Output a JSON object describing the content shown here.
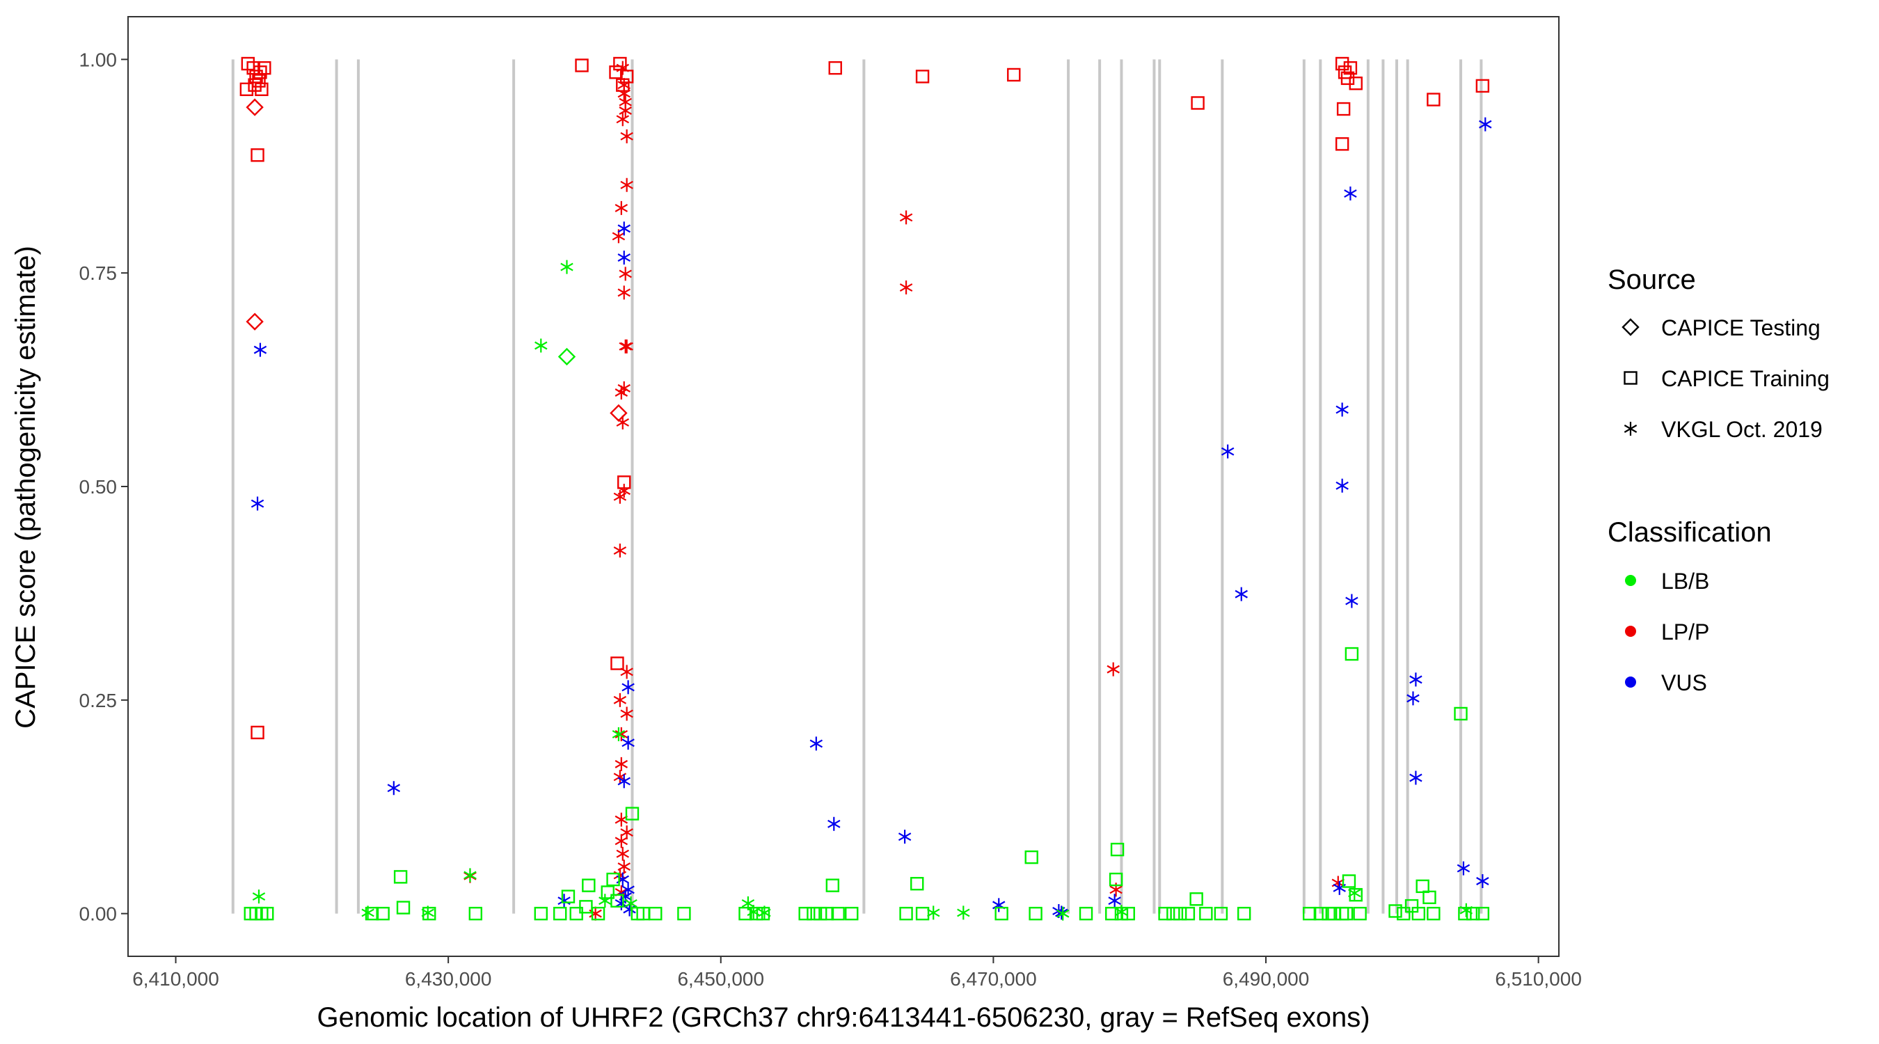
{
  "chart_data": {
    "type": "scatter",
    "title": "",
    "xlabel": "Genomic location of UHRF2 (GRCh37 chr9:6413441-6506230, gray = RefSeq exons)",
    "ylabel": "CAPICE score (pathogenicity estimate)",
    "xlim": [
      6406500,
      6511500
    ],
    "ylim": [
      -0.05,
      1.05
    ],
    "x_ticks": [
      6410000,
      6430000,
      6450000,
      6470000,
      6490000,
      6510000
    ],
    "x_tick_labels": [
      "6,410,000",
      "6,430,000",
      "6,450,000",
      "6,470,000",
      "6,490,000",
      "6,510,000"
    ],
    "y_ticks": [
      0,
      0.25,
      0.5,
      0.75,
      1.0
    ],
    "y_tick_labels": [
      "0.00",
      "0.25",
      "0.50",
      "0.75",
      "1.00"
    ],
    "exons": [
      6414200,
      6421800,
      6423400,
      6434800,
      6443500,
      6460500,
      6475500,
      6477800,
      6479400,
      6481800,
      6482200,
      6486800,
      6492800,
      6494000,
      6497500,
      6498600,
      6499600,
      6500400,
      6504300,
      6505800
    ],
    "legend": {
      "source_title": "Source",
      "sources": [
        {
          "key": "testing",
          "label": "CAPICE Testing",
          "shape": "diamond"
        },
        {
          "key": "training",
          "label": "CAPICE Training",
          "shape": "square"
        },
        {
          "key": "vkgl",
          "label": "VKGL Oct. 2019",
          "shape": "asterisk"
        }
      ],
      "class_title": "Classification",
      "classes": [
        {
          "key": "LB/B",
          "label": "LB/B",
          "color": "#00ee00"
        },
        {
          "key": "LP/P",
          "label": "LP/P",
          "color": "#ee0000"
        },
        {
          "key": "VUS",
          "label": "VUS",
          "color": "#0000ee"
        }
      ]
    },
    "series": [
      {
        "name": "CAPICE Training / LP/P",
        "source": "training",
        "class": "LP/P",
        "points": [
          [
            6415300,
            0.995
          ],
          [
            6415700,
            0.99
          ],
          [
            6416200,
            0.985
          ],
          [
            6416500,
            0.99
          ],
          [
            6416100,
            0.975
          ],
          [
            6415800,
            0.97
          ],
          [
            6416300,
            0.965
          ],
          [
            6415200,
            0.965
          ],
          [
            6415900,
            0.98
          ],
          [
            6416000,
            0.888
          ],
          [
            6416000,
            0.212
          ],
          [
            6439800,
            0.993
          ],
          [
            6458400,
            0.99
          ],
          [
            6464800,
            0.98
          ],
          [
            6471500,
            0.982
          ],
          [
            6485000,
            0.949
          ],
          [
            6495600,
            0.995
          ],
          [
            6495800,
            0.985
          ],
          [
            6496200,
            0.99
          ],
          [
            6496000,
            0.978
          ],
          [
            6496600,
            0.972
          ],
          [
            6495700,
            0.942
          ],
          [
            6495600,
            0.901
          ],
          [
            6502300,
            0.953
          ],
          [
            6505900,
            0.969
          ],
          [
            6442300,
            0.985
          ],
          [
            6442600,
            0.995
          ],
          [
            6442800,
            0.97
          ],
          [
            6443100,
            0.98
          ],
          [
            6442400,
            0.293
          ],
          [
            6442900,
            0.505
          ]
        ]
      },
      {
        "name": "CAPICE Testing / LP/P",
        "source": "testing",
        "class": "LP/P",
        "points": [
          [
            6415800,
            0.944
          ],
          [
            6415800,
            0.693
          ],
          [
            6442500,
            0.586
          ]
        ]
      },
      {
        "name": "CAPICE Testing / LB/B",
        "source": "testing",
        "class": "LB/B",
        "points": [
          [
            6438700,
            0.652
          ]
        ]
      },
      {
        "name": "VKGL Oct. 2019 / LP/P",
        "source": "vkgl",
        "class": "LP/P",
        "points": [
          [
            6442800,
            0.99
          ],
          [
            6442900,
            0.97
          ],
          [
            6443000,
            0.95
          ],
          [
            6442800,
            0.93
          ],
          [
            6443100,
            0.91
          ],
          [
            6442900,
            0.96
          ],
          [
            6443000,
            0.94
          ],
          [
            6443100,
            0.853
          ],
          [
            6442700,
            0.826
          ],
          [
            6442500,
            0.793
          ],
          [
            6443000,
            0.749
          ],
          [
            6442900,
            0.727
          ],
          [
            6443000,
            0.664
          ],
          [
            6443100,
            0.664
          ],
          [
            6442900,
            0.615
          ],
          [
            6442700,
            0.61
          ],
          [
            6442800,
            0.575
          ],
          [
            6442900,
            0.495
          ],
          [
            6442600,
            0.488
          ],
          [
            6442600,
            0.425
          ],
          [
            6443100,
            0.283
          ],
          [
            6442600,
            0.25
          ],
          [
            6443100,
            0.234
          ],
          [
            6442700,
            0.21
          ],
          [
            6442700,
            0.175
          ],
          [
            6442600,
            0.16
          ],
          [
            6442700,
            0.11
          ],
          [
            6443100,
            0.095
          ],
          [
            6442700,
            0.085
          ],
          [
            6442800,
            0.07
          ],
          [
            6442900,
            0.055
          ],
          [
            6442600,
            0.045
          ],
          [
            6442700,
            0.025
          ],
          [
            6431600,
            0.044
          ],
          [
            6463600,
            0.815
          ],
          [
            6463600,
            0.733
          ],
          [
            6478800,
            0.286
          ],
          [
            6479000,
            0.028
          ],
          [
            6495300,
            0.036
          ],
          [
            6440800,
            0.0
          ]
        ]
      },
      {
        "name": "VKGL Oct. 2019 / VUS",
        "source": "vkgl",
        "class": "VUS",
        "points": [
          [
            6416200,
            0.66
          ],
          [
            6416000,
            0.48
          ],
          [
            6426000,
            0.147
          ],
          [
            6438500,
            0.015
          ],
          [
            6442900,
            0.802
          ],
          [
            6442900,
            0.768
          ],
          [
            6443200,
            0.265
          ],
          [
            6443200,
            0.2
          ],
          [
            6442900,
            0.155
          ],
          [
            6442800,
            0.04
          ],
          [
            6443200,
            0.028
          ],
          [
            6443000,
            0.02
          ],
          [
            6442700,
            0.012
          ],
          [
            6443300,
            0.005
          ],
          [
            6457000,
            0.199
          ],
          [
            6458300,
            0.105
          ],
          [
            6463500,
            0.09
          ],
          [
            6470400,
            0.01
          ],
          [
            6474800,
            0.003
          ],
          [
            6475000,
            0.001
          ],
          [
            6478900,
            0.015
          ],
          [
            6487200,
            0.541
          ],
          [
            6488200,
            0.374
          ],
          [
            6495600,
            0.59
          ],
          [
            6495600,
            0.501
          ],
          [
            6496200,
            0.843
          ],
          [
            6496300,
            0.366
          ],
          [
            6495400,
            0.03
          ],
          [
            6501000,
            0.274
          ],
          [
            6500800,
            0.252
          ],
          [
            6501000,
            0.159
          ],
          [
            6504500,
            0.053
          ],
          [
            6505900,
            0.038
          ],
          [
            6506100,
            0.924
          ]
        ]
      },
      {
        "name": "VKGL Oct. 2019 / LB/B",
        "source": "vkgl",
        "class": "LB/B",
        "points": [
          [
            6416100,
            0.02
          ],
          [
            6438700,
            0.757
          ],
          [
            6436800,
            0.665
          ],
          [
            6424100,
            0.001
          ],
          [
            6428500,
            0.001
          ],
          [
            6431600,
            0.045
          ],
          [
            6442500,
            0.21
          ],
          [
            6452000,
            0.012
          ],
          [
            6452400,
            0.002
          ],
          [
            6453200,
            0.001
          ],
          [
            6465600,
            0.001
          ],
          [
            6467800,
            0.001
          ],
          [
            6475100,
            0.0
          ],
          [
            6479400,
            0.002
          ],
          [
            6496500,
            0.024
          ],
          [
            6504700,
            0.004
          ],
          [
            6443400,
            0.012
          ],
          [
            6441500,
            0.015
          ]
        ]
      },
      {
        "name": "CAPICE Training / LB/B",
        "source": "training",
        "class": "LB/B",
        "points": [
          [
            6415500,
            0.0
          ],
          [
            6415900,
            0.0
          ],
          [
            6416300,
            0.0
          ],
          [
            6416700,
            0.0
          ],
          [
            6424400,
            0.0
          ],
          [
            6425200,
            0.0
          ],
          [
            6426500,
            0.043
          ],
          [
            6426700,
            0.007
          ],
          [
            6428600,
            0.0
          ],
          [
            6432000,
            0.0
          ],
          [
            6436800,
            0.0
          ],
          [
            6438200,
            0.0
          ],
          [
            6438800,
            0.02
          ],
          [
            6439400,
            0.0
          ],
          [
            6440100,
            0.008
          ],
          [
            6440300,
            0.033
          ],
          [
            6441000,
            0.0
          ],
          [
            6441700,
            0.025
          ],
          [
            6442100,
            0.04
          ],
          [
            6442400,
            0.015
          ],
          [
            6443500,
            0.117
          ],
          [
            6443900,
            0.0
          ],
          [
            6444300,
            0.0
          ],
          [
            6445200,
            0.0
          ],
          [
            6447300,
            0.0
          ],
          [
            6451800,
            0.0
          ],
          [
            6452600,
            0.0
          ],
          [
            6453100,
            0.0
          ],
          [
            6456200,
            0.0
          ],
          [
            6456800,
            0.0
          ],
          [
            6457300,
            0.0
          ],
          [
            6457800,
            0.0
          ],
          [
            6458200,
            0.033
          ],
          [
            6458600,
            0.0
          ],
          [
            6459600,
            0.0
          ],
          [
            6463600,
            0.0
          ],
          [
            6464400,
            0.035
          ],
          [
            6464800,
            0.0
          ],
          [
            6470600,
            0.0
          ],
          [
            6472800,
            0.066
          ],
          [
            6473100,
            0.0
          ],
          [
            6476800,
            0.0
          ],
          [
            6478700,
            0.0
          ],
          [
            6479100,
            0.075
          ],
          [
            6479000,
            0.04
          ],
          [
            6479400,
            0.0
          ],
          [
            6479900,
            0.0
          ],
          [
            6482600,
            0.0
          ],
          [
            6483200,
            0.0
          ],
          [
            6483700,
            0.0
          ],
          [
            6484300,
            0.0
          ],
          [
            6484900,
            0.017
          ],
          [
            6485600,
            0.0
          ],
          [
            6486700,
            0.0
          ],
          [
            6488400,
            0.0
          ],
          [
            6493200,
            0.0
          ],
          [
            6494000,
            0.0
          ],
          [
            6494600,
            0.0
          ],
          [
            6495000,
            0.0
          ],
          [
            6495600,
            0.0
          ],
          [
            6495900,
            0.0
          ],
          [
            6496100,
            0.038
          ],
          [
            6496300,
            0.304
          ],
          [
            6496600,
            0.022
          ],
          [
            6496900,
            0.0
          ],
          [
            6499500,
            0.003
          ],
          [
            6500100,
            0.0
          ],
          [
            6500700,
            0.009
          ],
          [
            6501200,
            0.0
          ],
          [
            6501500,
            0.032
          ],
          [
            6502000,
            0.019
          ],
          [
            6502300,
            0.0
          ],
          [
            6504300,
            0.234
          ],
          [
            6504600,
            0.0
          ],
          [
            6505200,
            0.0
          ],
          [
            6505900,
            0.0
          ]
        ]
      }
    ]
  }
}
